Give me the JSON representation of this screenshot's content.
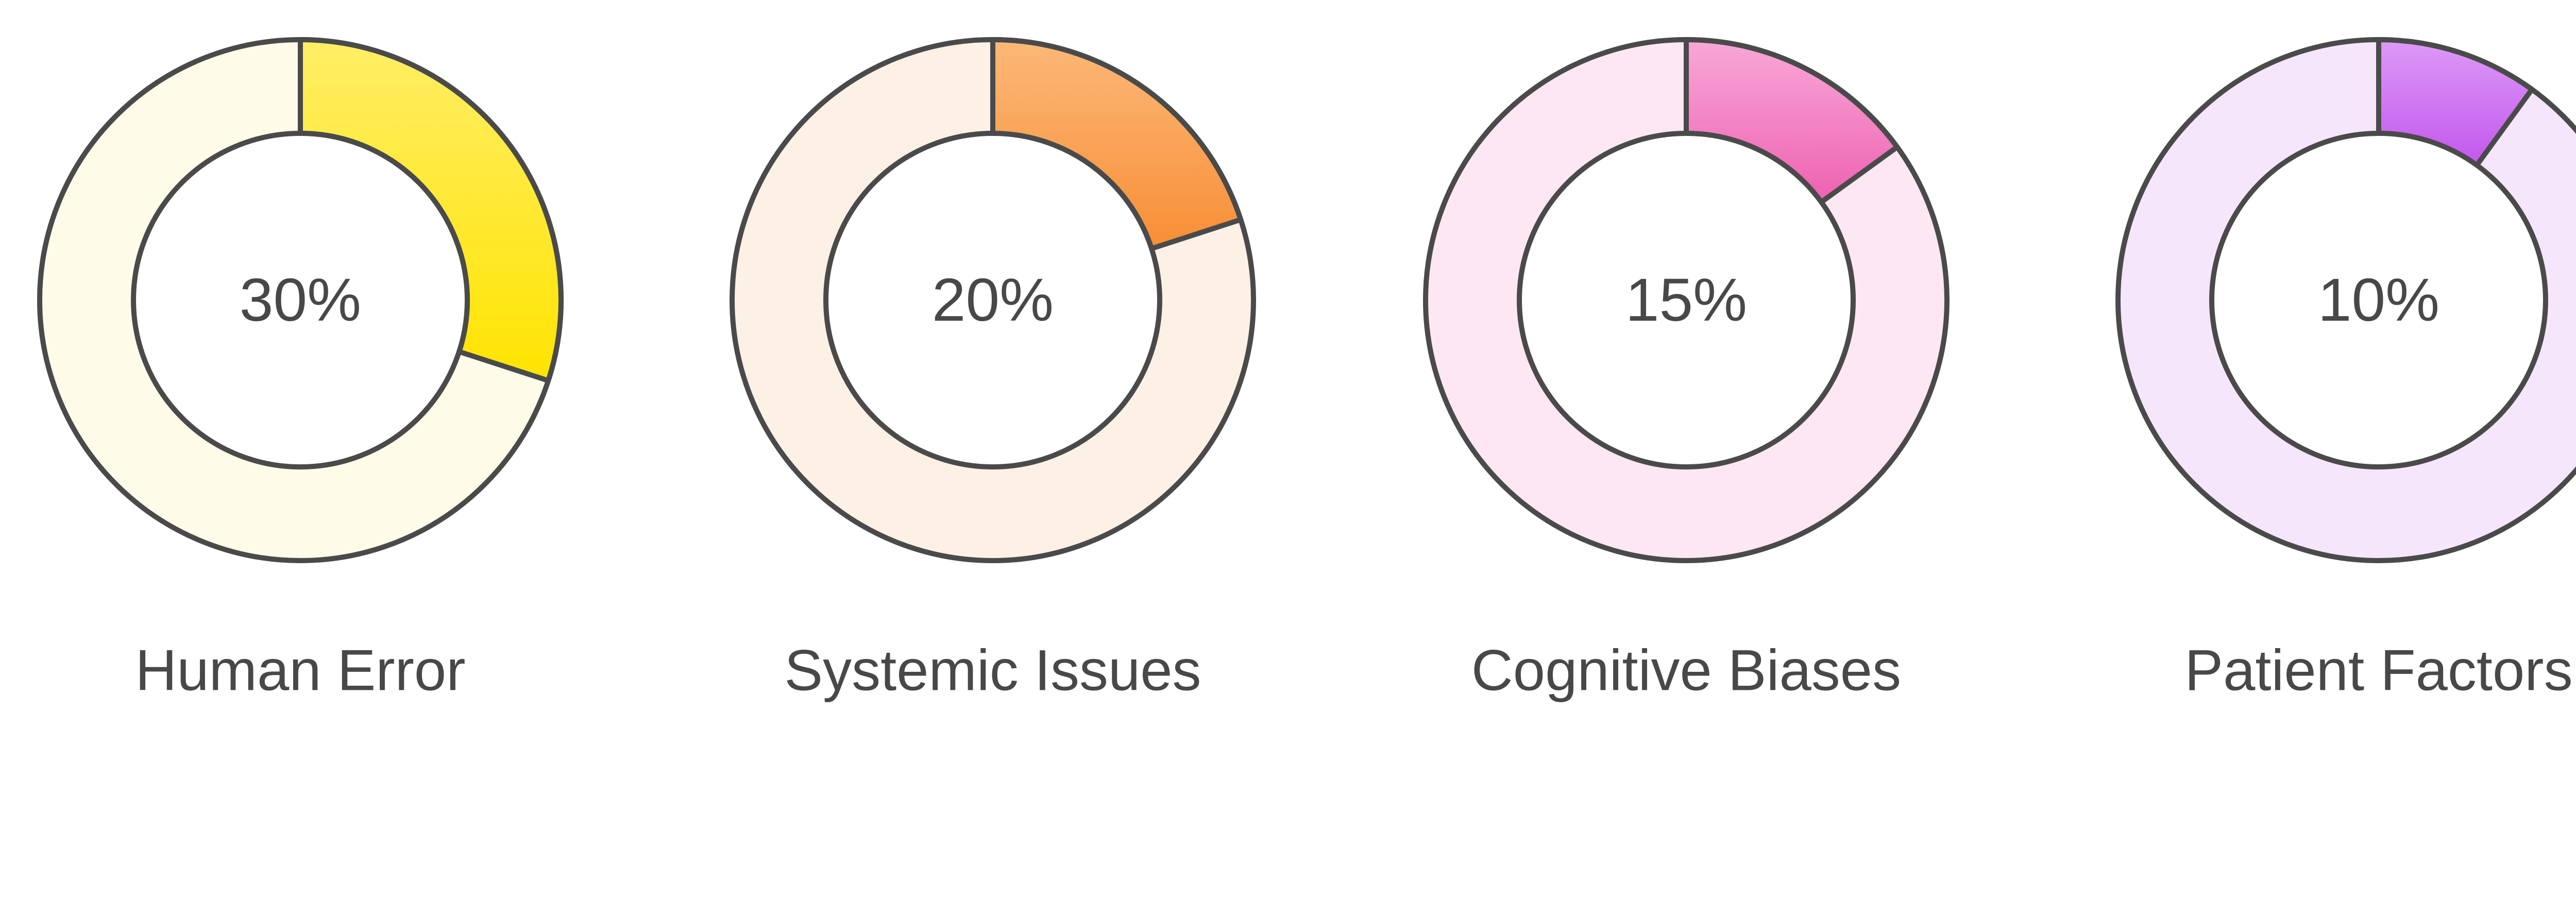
{
  "chart_data": [
    {
      "type": "pie",
      "label": "Human Error",
      "value": 30,
      "value_text": "30%",
      "colors": {
        "track": "#FEFBE8",
        "fill_light": "#FFEE66",
        "fill_dark": "#FFE400"
      }
    },
    {
      "type": "pie",
      "label": "Systemic Issues",
      "value": 20,
      "value_text": "20%",
      "colors": {
        "track": "#FDF1E6",
        "fill_light": "#FCB878",
        "fill_dark": "#F78E36"
      }
    },
    {
      "type": "pie",
      "label": "Cognitive Biases",
      "value": 15,
      "value_text": "15%",
      "colors": {
        "track": "#FCE7F3",
        "fill_light": "#F8A8D8",
        "fill_dark": "#EE61B0"
      }
    },
    {
      "type": "pie",
      "label": "Patient Factors",
      "value": 10,
      "value_text": "10%",
      "colors": {
        "track": "#F6E6FC",
        "fill_light": "#DD9AF6",
        "fill_dark": "#C257EE"
      }
    }
  ],
  "style": {
    "stroke": "#4A4A4A",
    "text": "#484848"
  }
}
